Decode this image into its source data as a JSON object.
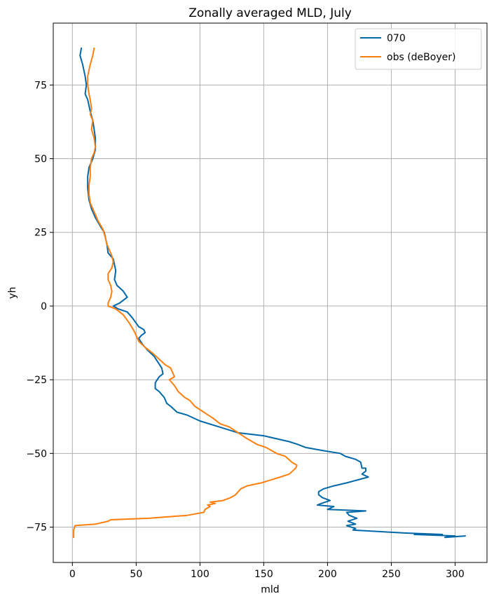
{
  "chart_data": {
    "type": "line",
    "title": "Zonally averaged MLD, July",
    "xlabel": "mld",
    "ylabel": "yh",
    "xlim": [
      -15,
      325
    ],
    "ylim": [
      -87,
      96
    ],
    "xticks": [
      0,
      50,
      100,
      150,
      200,
      250,
      300
    ],
    "xtick_labels": [
      "0",
      "50",
      "100",
      "150",
      "200",
      "250",
      "300"
    ],
    "yticks": [
      -75,
      -50,
      -25,
      0,
      25,
      50,
      75
    ],
    "ytick_labels": [
      "−75",
      "−50",
      "−25",
      "0",
      "25",
      "50",
      "75"
    ],
    "grid": true,
    "legend_position": "top-right",
    "series": [
      {
        "name": "070",
        "color": "#0068a8",
        "points": [
          [
            7,
            87.5
          ],
          [
            6,
            85
          ],
          [
            8,
            82
          ],
          [
            10,
            78
          ],
          [
            11,
            75
          ],
          [
            10,
            72
          ],
          [
            12,
            70
          ],
          [
            14,
            66
          ],
          [
            16,
            63
          ],
          [
            17,
            60
          ],
          [
            18,
            57
          ],
          [
            18,
            53
          ],
          [
            16,
            50
          ],
          [
            13,
            47
          ],
          [
            12,
            44
          ],
          [
            12,
            40
          ],
          [
            13,
            36
          ],
          [
            15,
            33
          ],
          [
            18,
            30
          ],
          [
            22,
            27
          ],
          [
            25,
            25
          ],
          [
            27,
            21
          ],
          [
            28,
            18
          ],
          [
            32,
            16
          ],
          [
            34,
            12
          ],
          [
            33,
            9
          ],
          [
            35,
            7
          ],
          [
            40,
            5
          ],
          [
            43,
            3
          ],
          [
            37,
            1
          ],
          [
            32,
            0
          ],
          [
            36,
            -1
          ],
          [
            43,
            -2
          ],
          [
            47,
            -4
          ],
          [
            52,
            -7
          ],
          [
            56,
            -8
          ],
          [
            57,
            -9
          ],
          [
            54,
            -10
          ],
          [
            52,
            -11
          ],
          [
            55,
            -13
          ],
          [
            59,
            -15
          ],
          [
            64,
            -17
          ],
          [
            67,
            -19
          ],
          [
            70,
            -21
          ],
          [
            71,
            -23
          ],
          [
            68,
            -24
          ],
          [
            65,
            -26
          ],
          [
            65,
            -28
          ],
          [
            68,
            -29
          ],
          [
            72,
            -31
          ],
          [
            74,
            -33
          ],
          [
            77,
            -34
          ],
          [
            82,
            -36
          ],
          [
            90,
            -37
          ],
          [
            100,
            -39
          ],
          [
            115,
            -41
          ],
          [
            130,
            -43
          ],
          [
            150,
            -44
          ],
          [
            170,
            -46
          ],
          [
            177,
            -47
          ],
          [
            183,
            -48
          ],
          [
            196,
            -49
          ],
          [
            210,
            -50
          ],
          [
            214,
            -51
          ],
          [
            222,
            -52
          ],
          [
            226,
            -53
          ],
          [
            227,
            -55
          ],
          [
            230,
            -55
          ],
          [
            230,
            -56
          ],
          [
            227,
            -57
          ],
          [
            232,
            -58
          ],
          [
            215,
            -60
          ],
          [
            205,
            -61
          ],
          [
            197,
            -62
          ],
          [
            193,
            -63
          ],
          [
            193,
            -64
          ],
          [
            196,
            -65
          ],
          [
            202,
            -66
          ],
          [
            195,
            -67
          ],
          [
            192,
            -67.5
          ],
          [
            205,
            -68
          ],
          [
            200,
            -69
          ],
          [
            230,
            -69.5
          ],
          [
            215,
            -70
          ],
          [
            217,
            -71
          ],
          [
            223,
            -72
          ],
          [
            216,
            -73
          ],
          [
            222,
            -74
          ],
          [
            215,
            -74.5
          ],
          [
            222,
            -75.5
          ],
          [
            220,
            -76
          ],
          [
            260,
            -77
          ],
          [
            290,
            -77.5
          ],
          [
            268,
            -77.5
          ],
          [
            300,
            -78
          ],
          [
            292,
            -78.5
          ],
          [
            308,
            -78
          ]
        ]
      },
      {
        "name": "obs (deBoyer)",
        "color": "#ff7f0e",
        "points": [
          [
            17,
            87.5
          ],
          [
            16,
            85
          ],
          [
            14,
            82
          ],
          [
            12,
            78
          ],
          [
            12,
            75
          ],
          [
            13,
            72
          ],
          [
            14,
            70
          ],
          [
            15,
            67
          ],
          [
            14,
            65
          ],
          [
            16,
            63
          ],
          [
            15,
            60
          ],
          [
            17,
            57
          ],
          [
            18,
            54
          ],
          [
            17,
            52
          ],
          [
            15,
            50
          ],
          [
            14,
            47
          ],
          [
            14,
            44
          ],
          [
            13,
            41
          ],
          [
            13,
            38
          ],
          [
            14,
            35
          ],
          [
            17,
            32
          ],
          [
            20,
            29
          ],
          [
            24,
            26
          ],
          [
            26,
            23
          ],
          [
            27,
            21
          ],
          [
            29,
            19
          ],
          [
            31,
            17
          ],
          [
            32,
            15
          ],
          [
            31,
            13
          ],
          [
            28,
            11
          ],
          [
            28,
            9
          ],
          [
            30,
            7
          ],
          [
            31,
            5
          ],
          [
            30,
            3
          ],
          [
            28,
            1
          ],
          [
            28,
            0
          ],
          [
            34,
            -1
          ],
          [
            40,
            -3
          ],
          [
            45,
            -6
          ],
          [
            49,
            -9
          ],
          [
            52,
            -12
          ],
          [
            57,
            -14
          ],
          [
            63,
            -16
          ],
          [
            68,
            -18
          ],
          [
            73,
            -20
          ],
          [
            77,
            -21
          ],
          [
            79,
            -23
          ],
          [
            80,
            -24
          ],
          [
            76,
            -25
          ],
          [
            80,
            -27
          ],
          [
            83,
            -29
          ],
          [
            88,
            -31
          ],
          [
            92,
            -32
          ],
          [
            96,
            -34
          ],
          [
            103,
            -36
          ],
          [
            110,
            -38
          ],
          [
            116,
            -40
          ],
          [
            123,
            -41
          ],
          [
            130,
            -43
          ],
          [
            137,
            -45
          ],
          [
            145,
            -47
          ],
          [
            152,
            -48
          ],
          [
            160,
            -50
          ],
          [
            167,
            -51
          ],
          [
            172,
            -53
          ],
          [
            176,
            -54
          ],
          [
            175,
            -55
          ],
          [
            170,
            -57
          ],
          [
            163,
            -58
          ],
          [
            148,
            -60
          ],
          [
            137,
            -61
          ],
          [
            132,
            -62
          ],
          [
            128,
            -64
          ],
          [
            124,
            -65
          ],
          [
            118,
            -66
          ],
          [
            108,
            -66.5
          ],
          [
            112,
            -67
          ],
          [
            106,
            -67.5
          ],
          [
            108,
            -68
          ],
          [
            104,
            -69
          ],
          [
            103,
            -70
          ],
          [
            90,
            -71
          ],
          [
            60,
            -72
          ],
          [
            30,
            -72.5
          ],
          [
            28,
            -73
          ],
          [
            18,
            -74
          ],
          [
            2,
            -74.5
          ],
          [
            1,
            -76
          ],
          [
            1,
            -78.5
          ]
        ]
      }
    ]
  }
}
